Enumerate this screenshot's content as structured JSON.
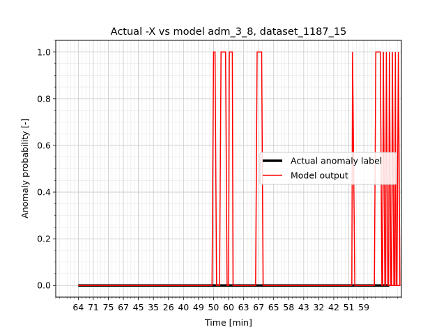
{
  "chart_data": {
    "type": "line",
    "title": "Actual -X vs model adm_3_8, dataset_1187_15",
    "xlabel": "Time [min]",
    "ylabel": "Anomaly probability [-]",
    "x_tick_labels": [
      "64",
      "71",
      "75",
      "67",
      "45",
      "35",
      "26",
      "40",
      "49",
      "50",
      "60",
      "63",
      "67",
      "65",
      "58",
      "43",
      "32",
      "42",
      "51",
      "59"
    ],
    "y_ticks": [
      0.0,
      0.2,
      0.4,
      0.6,
      0.8,
      1.0
    ],
    "y_tick_labels": [
      "0.0",
      "0.2",
      "0.4",
      "0.6",
      "0.8",
      "1.0"
    ],
    "xlim": [
      -1.5,
      21.5
    ],
    "ylim": [
      -0.05,
      1.05
    ],
    "grid": true,
    "legend_position": "center-right",
    "series": [
      {
        "name": "Actual anomaly label",
        "color": "#000000",
        "points": [
          [
            0,
            0
          ],
          [
            20.7,
            0
          ]
        ]
      },
      {
        "name": "Model output",
        "color": "#ff0000",
        "points": [
          [
            0,
            0
          ],
          [
            8.9,
            0
          ],
          [
            9.0,
            1
          ],
          [
            9.1,
            1
          ],
          [
            9.2,
            0
          ],
          [
            9.4,
            0
          ],
          [
            9.5,
            1
          ],
          [
            9.8,
            1
          ],
          [
            9.9,
            0
          ],
          [
            10.0,
            0
          ],
          [
            10.05,
            1
          ],
          [
            10.25,
            1
          ],
          [
            10.3,
            0
          ],
          [
            11.8,
            0
          ],
          [
            11.9,
            1
          ],
          [
            12.2,
            1
          ],
          [
            12.3,
            0
          ],
          [
            18.2,
            0
          ],
          [
            18.25,
            1
          ],
          [
            18.4,
            0
          ],
          [
            19.7,
            0
          ],
          [
            19.8,
            1
          ],
          [
            20.1,
            1
          ],
          [
            20.2,
            0
          ],
          [
            20.25,
            0
          ],
          [
            20.3,
            1
          ],
          [
            20.4,
            0
          ],
          [
            20.45,
            0
          ],
          [
            20.5,
            1
          ],
          [
            20.6,
            0
          ],
          [
            20.65,
            0
          ],
          [
            20.7,
            1
          ],
          [
            20.8,
            0
          ],
          [
            20.85,
            0
          ],
          [
            20.9,
            1
          ],
          [
            21.0,
            0
          ],
          [
            21.05,
            0
          ],
          [
            21.1,
            1
          ],
          [
            21.15,
            0
          ],
          [
            21.2,
            0
          ],
          [
            21.3,
            1
          ],
          [
            21.4,
            0
          ],
          [
            20.7,
            0
          ]
        ]
      }
    ]
  }
}
